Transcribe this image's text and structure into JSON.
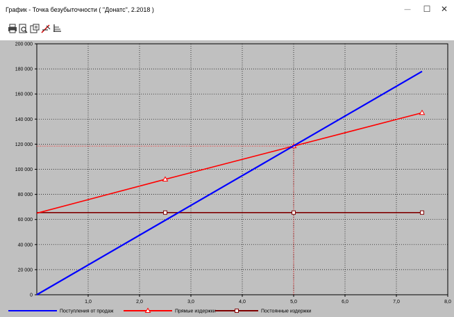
{
  "window": {
    "title": "График - Точка безубыточности ( \"Донатс\", 2.2018 )",
    "minimize_icon": "—",
    "maximize_icon": "☐",
    "close_icon": "✕"
  },
  "toolbar": {
    "buttons": [
      {
        "name": "print-icon"
      },
      {
        "name": "preview-icon"
      },
      {
        "name": "properties-icon"
      },
      {
        "name": "chart-style-icon"
      },
      {
        "name": "axes-icon"
      }
    ]
  },
  "chart_data": {
    "type": "line",
    "title": "",
    "xlabel": "",
    "ylabel": "",
    "xlim": [
      0,
      8
    ],
    "ylim": [
      0,
      200000
    ],
    "x_ticks": [
      "1,0",
      "2,0",
      "3,0",
      "4,0",
      "5,0",
      "6,0",
      "7,0",
      "8,0"
    ],
    "y_ticks": [
      "0",
      "20 000",
      "40 000",
      "60 000",
      "80 000",
      "100 000",
      "120 000",
      "140 000",
      "160 000",
      "180 000",
      "200 000"
    ],
    "grid": true,
    "legend_position": "bottom",
    "series": [
      {
        "name": "Поступления от продаж",
        "color": "#0000ff",
        "marker": "none",
        "x": [
          0,
          7.5
        ],
        "y": [
          0,
          178000
        ]
      },
      {
        "name": "Прямые издержки",
        "color": "#ff0000",
        "marker": "triangle",
        "x": [
          0,
          2.5,
          5.0,
          7.5
        ],
        "y": [
          65000,
          92000,
          118500,
          145000
        ]
      },
      {
        "name": "Постоянные издержки",
        "color": "#800000",
        "marker": "square",
        "x": [
          0,
          2.5,
          5.0,
          7.5
        ],
        "y": [
          65500,
          65500,
          65500,
          65500
        ]
      }
    ],
    "breakeven": {
      "x": 5.0,
      "y": 118500
    }
  }
}
